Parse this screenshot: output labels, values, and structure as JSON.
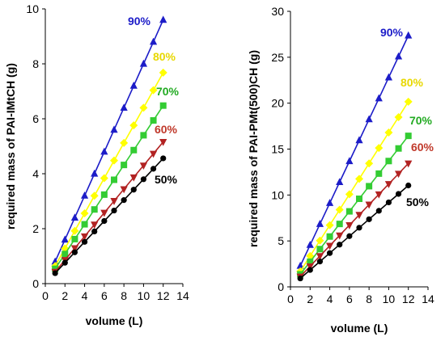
{
  "chart_data": [
    {
      "type": "line",
      "xlabel": "volume (L)",
      "ylabel": "required mass of PAI-IMtCH (g)",
      "xlim": [
        0,
        14
      ],
      "ylim": [
        0,
        10
      ],
      "xticks": [
        0,
        2,
        4,
        6,
        8,
        10,
        12,
        14
      ],
      "yticks": [
        0,
        2,
        4,
        6,
        8,
        10
      ],
      "grid": false,
      "x": [
        1,
        2,
        3,
        4,
        5,
        6,
        7,
        8,
        9,
        10,
        11,
        12
      ],
      "series": [
        {
          "name": "90%",
          "color": "#1c1cc8",
          "marker": "triangle-up",
          "label_color": "#1c1cc8",
          "values": [
            0.8,
            1.6,
            2.4,
            3.2,
            4.0,
            4.8,
            5.6,
            6.4,
            7.2,
            8.0,
            8.8,
            9.6
          ]
        },
        {
          "name": "80%",
          "color": "#ffff00",
          "marker": "diamond",
          "label_color": "#e8d800",
          "values": [
            0.64,
            1.28,
            1.92,
            2.56,
            3.2,
            3.84,
            4.48,
            5.12,
            5.76,
            6.4,
            7.04,
            7.68
          ]
        },
        {
          "name": "70%",
          "color": "#33cc33",
          "marker": "square",
          "label_color": "#22aa22",
          "values": [
            0.54,
            1.08,
            1.62,
            2.16,
            2.7,
            3.24,
            3.78,
            4.32,
            4.86,
            5.4,
            5.94,
            6.48
          ]
        },
        {
          "name": "60%",
          "color": "#b22222",
          "marker": "triangle-down",
          "label_color": "#c0392b",
          "values": [
            0.43,
            0.86,
            1.29,
            1.72,
            2.15,
            2.58,
            3.01,
            3.44,
            3.87,
            4.3,
            4.73,
            5.16
          ]
        },
        {
          "name": "50%",
          "color": "#000000",
          "marker": "circle",
          "label_color": "#000000",
          "values": [
            0.38,
            0.76,
            1.14,
            1.52,
            1.9,
            2.28,
            2.66,
            3.04,
            3.42,
            3.8,
            4.18,
            4.56
          ]
        }
      ]
    },
    {
      "type": "line",
      "xlabel": "volume (L)",
      "ylabel": "required mass of PAI-PMt(500)CH (g)",
      "xlim": [
        0,
        14
      ],
      "ylim": [
        0,
        30
      ],
      "xticks": [
        0,
        2,
        4,
        6,
        8,
        10,
        12,
        14
      ],
      "yticks": [
        0,
        5,
        10,
        15,
        20,
        25,
        30
      ],
      "grid": false,
      "x": [
        1,
        2,
        3,
        4,
        5,
        6,
        7,
        8,
        9,
        10,
        11,
        12
      ],
      "series": [
        {
          "name": "90%",
          "color": "#1c1cc8",
          "marker": "triangle-up",
          "label_color": "#1c1cc8",
          "values": [
            2.28,
            4.56,
            6.84,
            9.12,
            11.4,
            13.68,
            15.96,
            18.24,
            20.52,
            22.8,
            25.08,
            27.36
          ]
        },
        {
          "name": "80%",
          "color": "#ffff00",
          "marker": "diamond",
          "label_color": "#e8d800",
          "values": [
            1.68,
            3.36,
            5.04,
            6.72,
            8.4,
            10.08,
            11.76,
            13.44,
            15.12,
            16.8,
            18.48,
            20.16
          ]
        },
        {
          "name": "70%",
          "color": "#33cc33",
          "marker": "square",
          "label_color": "#22aa22",
          "values": [
            1.37,
            2.74,
            4.11,
            5.48,
            6.85,
            8.22,
            9.59,
            10.96,
            12.33,
            13.7,
            15.07,
            16.44
          ]
        },
        {
          "name": "60%",
          "color": "#b22222",
          "marker": "triangle-down",
          "label_color": "#c0392b",
          "values": [
            1.12,
            2.24,
            3.36,
            4.48,
            5.6,
            6.72,
            7.84,
            8.96,
            10.08,
            11.2,
            12.32,
            13.44
          ]
        },
        {
          "name": "50%",
          "color": "#000000",
          "marker": "circle",
          "label_color": "#000000",
          "values": [
            0.92,
            1.84,
            2.76,
            3.68,
            4.6,
            5.52,
            6.44,
            7.36,
            8.28,
            9.2,
            10.12,
            11.04
          ]
        }
      ]
    }
  ]
}
